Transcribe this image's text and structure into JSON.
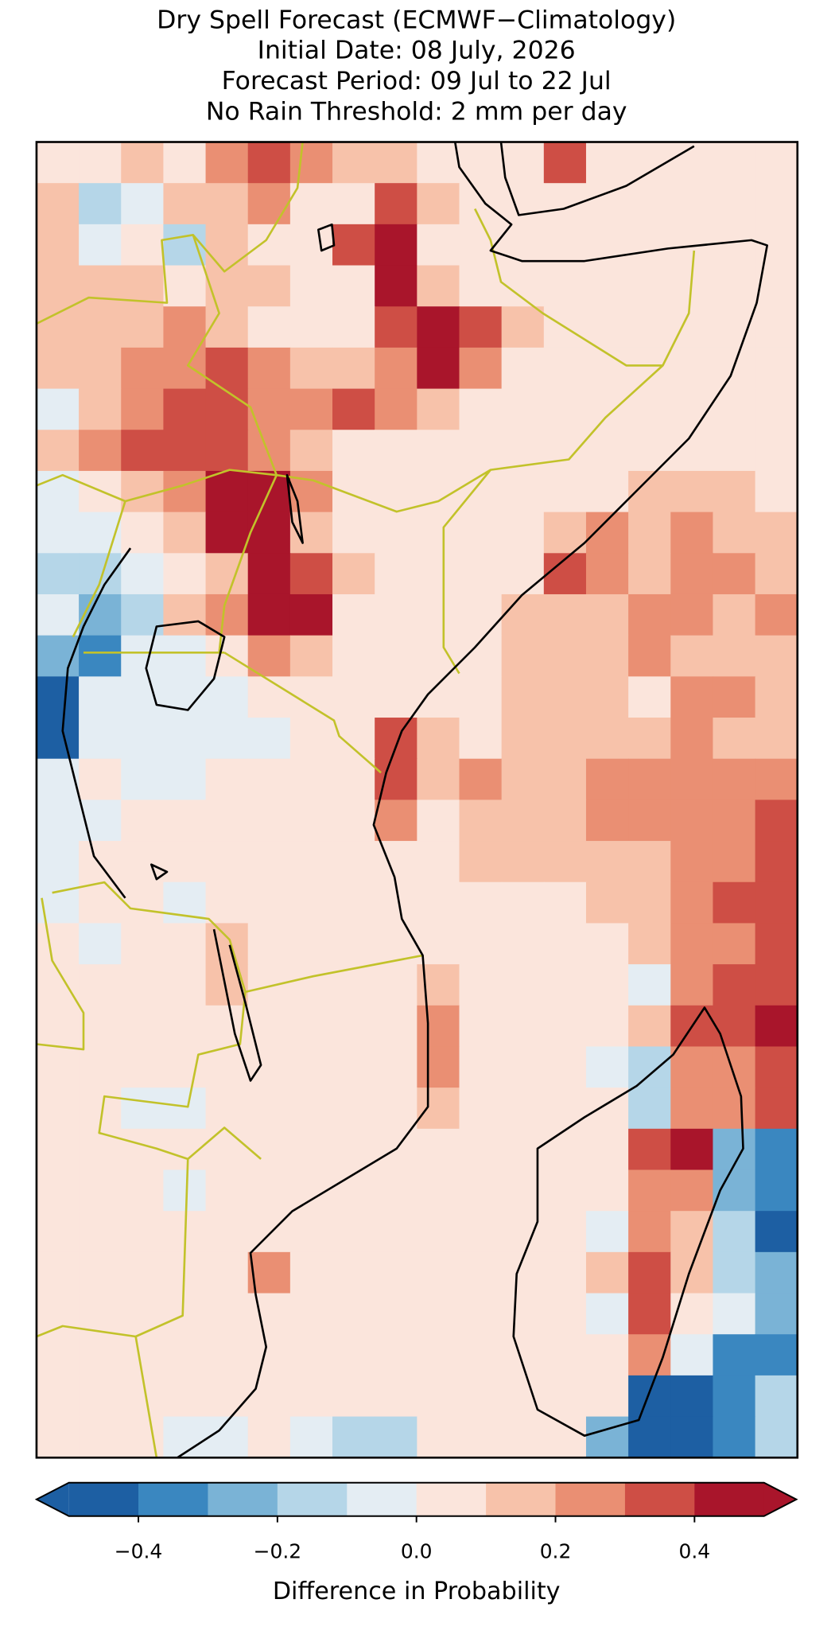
{
  "chart_data": {
    "type": "heatmap",
    "title": [
      "Dry Spell Forecast (ECMWF−Climatology)",
      "Initial Date: 08 July, 2026",
      "Forecast Period: 09 Jul to 22 Jul",
      "No Rain Threshold: 2 mm per day"
    ],
    "colorbar_label": "Difference in Probability",
    "levels": [
      -0.5,
      -0.4,
      -0.3,
      -0.2,
      -0.1,
      0,
      0.1,
      0.2,
      0.3,
      0.4,
      0.5
    ],
    "colors": [
      "#1d5fa3",
      "#3a87c0",
      "#7ab3d6",
      "#b5d6e8",
      "#e4edf3",
      "#fbe5dc",
      "#f7c2aa",
      "#ea8f73",
      "#ce4e45",
      "#a9152b"
    ],
    "extend": "both",
    "cticks": [
      {
        "value": -0.4,
        "label": "−0.4"
      },
      {
        "value": -0.2,
        "label": "−0.2"
      },
      {
        "value": 0,
        "label": "0.0"
      },
      0.2,
      0.4
    ],
    "values": [
      [
        0.05,
        0.05,
        0.15,
        0.05,
        0.25,
        0.35,
        0.25,
        0.15,
        0.15,
        0.05,
        0.05,
        0.05,
        0.35,
        0.05,
        0.05,
        0.05,
        0.05,
        0.05
      ],
      [
        0.15,
        -0.15,
        -0.05,
        0.15,
        0.15,
        0.25,
        0.05,
        0.05,
        0.35,
        0.15,
        0.05,
        0.05,
        0.05,
        0.05,
        0.05,
        0.05,
        0.05,
        0.05
      ],
      [
        0.15,
        -0.05,
        0.05,
        -0.15,
        0.15,
        0.05,
        0.05,
        0.35,
        0.45,
        0.05,
        0.05,
        0.05,
        0.05,
        0.05,
        0.05,
        0.05,
        0.05,
        0.05
      ],
      [
        0.15,
        0.15,
        0.15,
        0.05,
        0.15,
        0.15,
        0.05,
        0.05,
        0.45,
        0.15,
        0.05,
        0.05,
        0.05,
        0.05,
        0.05,
        0.05,
        0.05,
        0.05
      ],
      [
        0.15,
        0.15,
        0.15,
        0.25,
        0.15,
        0.05,
        0.05,
        0.05,
        0.35,
        0.45,
        0.35,
        0.15,
        0.05,
        0.05,
        0.05,
        0.05,
        0.05,
        0.05
      ],
      [
        0.15,
        0.15,
        0.25,
        0.25,
        0.35,
        0.25,
        0.15,
        0.15,
        0.25,
        0.45,
        0.25,
        0.05,
        0.05,
        0.05,
        0.05,
        0.05,
        0.05,
        0.05
      ],
      [
        -0.05,
        0.15,
        0.25,
        0.35,
        0.35,
        0.25,
        0.25,
        0.35,
        0.25,
        0.15,
        0.05,
        0.05,
        0.05,
        0.05,
        0.05,
        0.05,
        0.05,
        0.05
      ],
      [
        0.15,
        0.25,
        0.35,
        0.35,
        0.35,
        0.25,
        0.15,
        0.05,
        0.05,
        0.05,
        0.05,
        0.05,
        0.05,
        0.05,
        0.05,
        0.05,
        0.05,
        0.05
      ],
      [
        -0.05,
        0.05,
        0.15,
        0.25,
        0.45,
        0.45,
        0.25,
        0.05,
        0.05,
        0.05,
        0.05,
        0.05,
        0.05,
        0.05,
        0.15,
        0.15,
        0.15,
        0.05
      ],
      [
        -0.05,
        -0.05,
        0.05,
        0.15,
        0.45,
        0.45,
        0.15,
        0.05,
        0.05,
        0.05,
        0.05,
        0.05,
        0.15,
        0.25,
        0.15,
        0.25,
        0.15,
        0.15
      ],
      [
        -0.15,
        -0.15,
        -0.05,
        0.05,
        0.15,
        0.45,
        0.35,
        0.15,
        0.05,
        0.05,
        0.05,
        0.05,
        0.35,
        0.25,
        0.15,
        0.25,
        0.25,
        0.15
      ],
      [
        -0.05,
        -0.25,
        -0.15,
        0.15,
        0.25,
        0.45,
        0.45,
        0.05,
        0.05,
        0.05,
        0.05,
        0.15,
        0.15,
        0.15,
        0.25,
        0.25,
        0.15,
        0.25
      ],
      [
        -0.25,
        -0.35,
        -0.05,
        -0.05,
        0.05,
        0.25,
        0.15,
        0.05,
        0.05,
        0.05,
        0.05,
        0.15,
        0.15,
        0.15,
        0.25,
        0.15,
        0.15,
        0.15
      ],
      [
        -0.45,
        -0.05,
        -0.05,
        -0.05,
        -0.05,
        0.05,
        0.05,
        0.05,
        0.05,
        0.05,
        0.05,
        0.15,
        0.15,
        0.15,
        0.05,
        0.25,
        0.25,
        0.15
      ],
      [
        -0.45,
        -0.05,
        -0.05,
        -0.05,
        -0.05,
        -0.05,
        0.05,
        0.05,
        0.35,
        0.15,
        0.05,
        0.15,
        0.15,
        0.15,
        0.15,
        0.25,
        0.15,
        0.15
      ],
      [
        -0.05,
        0.05,
        -0.05,
        -0.05,
        0.05,
        0.05,
        0.05,
        0.05,
        0.35,
        0.15,
        0.25,
        0.15,
        0.15,
        0.25,
        0.25,
        0.25,
        0.25,
        0.25
      ],
      [
        -0.05,
        -0.05,
        0.05,
        0.05,
        0.05,
        0.05,
        0.05,
        0.05,
        0.25,
        0.05,
        0.15,
        0.15,
        0.15,
        0.25,
        0.25,
        0.25,
        0.25,
        0.35
      ],
      [
        -0.05,
        0.05,
        0.05,
        0.05,
        0.05,
        0.05,
        0.05,
        0.05,
        0.05,
        0.05,
        0.15,
        0.15,
        0.15,
        0.15,
        0.15,
        0.25,
        0.25,
        0.35
      ],
      [
        -0.05,
        0.05,
        0.05,
        -0.05,
        0.05,
        0.05,
        0.05,
        0.05,
        0.05,
        0.05,
        0.05,
        0.05,
        0.05,
        0.15,
        0.15,
        0.25,
        0.35,
        0.35
      ],
      [
        0.05,
        -0.05,
        0.05,
        0.05,
        0.15,
        0.05,
        0.05,
        0.05,
        0.05,
        0.05,
        0.05,
        0.05,
        0.05,
        0.05,
        0.15,
        0.25,
        0.25,
        0.35
      ],
      [
        0.05,
        0.05,
        0.05,
        0.05,
        0.15,
        0.05,
        0.05,
        0.05,
        0.05,
        0.15,
        0.05,
        0.05,
        0.05,
        0.05,
        -0.05,
        0.25,
        0.35,
        0.35
      ],
      [
        0.05,
        0.05,
        0.05,
        0.05,
        0.05,
        0.05,
        0.05,
        0.05,
        0.05,
        0.25,
        0.05,
        0.05,
        0.05,
        0.05,
        0.15,
        0.35,
        0.35,
        0.45
      ],
      [
        0.05,
        0.05,
        0.05,
        0.05,
        0.05,
        0.05,
        0.05,
        0.05,
        0.05,
        0.25,
        0.05,
        0.05,
        0.05,
        -0.05,
        -0.15,
        0.25,
        0.25,
        0.35
      ],
      [
        0.05,
        0.05,
        -0.05,
        -0.05,
        0.05,
        0.05,
        0.05,
        0.05,
        0.05,
        0.15,
        0.05,
        0.05,
        0.05,
        0.05,
        -0.15,
        0.25,
        0.25,
        0.35
      ],
      [
        0.05,
        0.05,
        0.05,
        0.05,
        0.05,
        0.05,
        0.05,
        0.05,
        0.05,
        0.05,
        0.05,
        0.05,
        0.05,
        0.05,
        0.35,
        0.45,
        -0.25,
        -0.35
      ],
      [
        0.05,
        0.05,
        0.05,
        -0.05,
        0.05,
        0.05,
        0.05,
        0.05,
        0.05,
        0.05,
        0.05,
        0.05,
        0.05,
        0.05,
        0.25,
        0.25,
        -0.25,
        -0.35
      ],
      [
        0.05,
        0.05,
        0.05,
        0.05,
        0.05,
        0.05,
        0.05,
        0.05,
        0.05,
        0.05,
        0.05,
        0.05,
        0.05,
        -0.05,
        0.25,
        0.15,
        -0.15,
        -0.45
      ],
      [
        0.05,
        0.05,
        0.05,
        0.05,
        0.05,
        0.25,
        0.05,
        0.05,
        0.05,
        0.05,
        0.05,
        0.05,
        0.05,
        0.15,
        0.35,
        0.15,
        -0.15,
        -0.25
      ],
      [
        0.05,
        0.05,
        0.05,
        0.05,
        0.05,
        0.05,
        0.05,
        0.05,
        0.05,
        0.05,
        0.05,
        0.05,
        0.05,
        -0.05,
        0.35,
        0.05,
        -0.05,
        -0.25
      ],
      [
        0.05,
        0.05,
        0.05,
        0.05,
        0.05,
        0.05,
        0.05,
        0.05,
        0.05,
        0.05,
        0.05,
        0.05,
        0.05,
        0.05,
        0.25,
        -0.05,
        -0.35,
        -0.35
      ],
      [
        0.05,
        0.05,
        0.05,
        0.05,
        0.05,
        0.05,
        0.05,
        0.05,
        0.05,
        0.05,
        0.05,
        0.05,
        0.05,
        0.05,
        -0.45,
        -0.45,
        -0.35,
        -0.15
      ],
      [
        0.05,
        0.05,
        0.05,
        -0.05,
        -0.05,
        0.05,
        -0.05,
        -0.15,
        -0.15,
        0.05,
        0.05,
        0.05,
        0.05,
        -0.25,
        -0.45,
        -0.45,
        -0.35,
        -0.15
      ]
    ]
  }
}
